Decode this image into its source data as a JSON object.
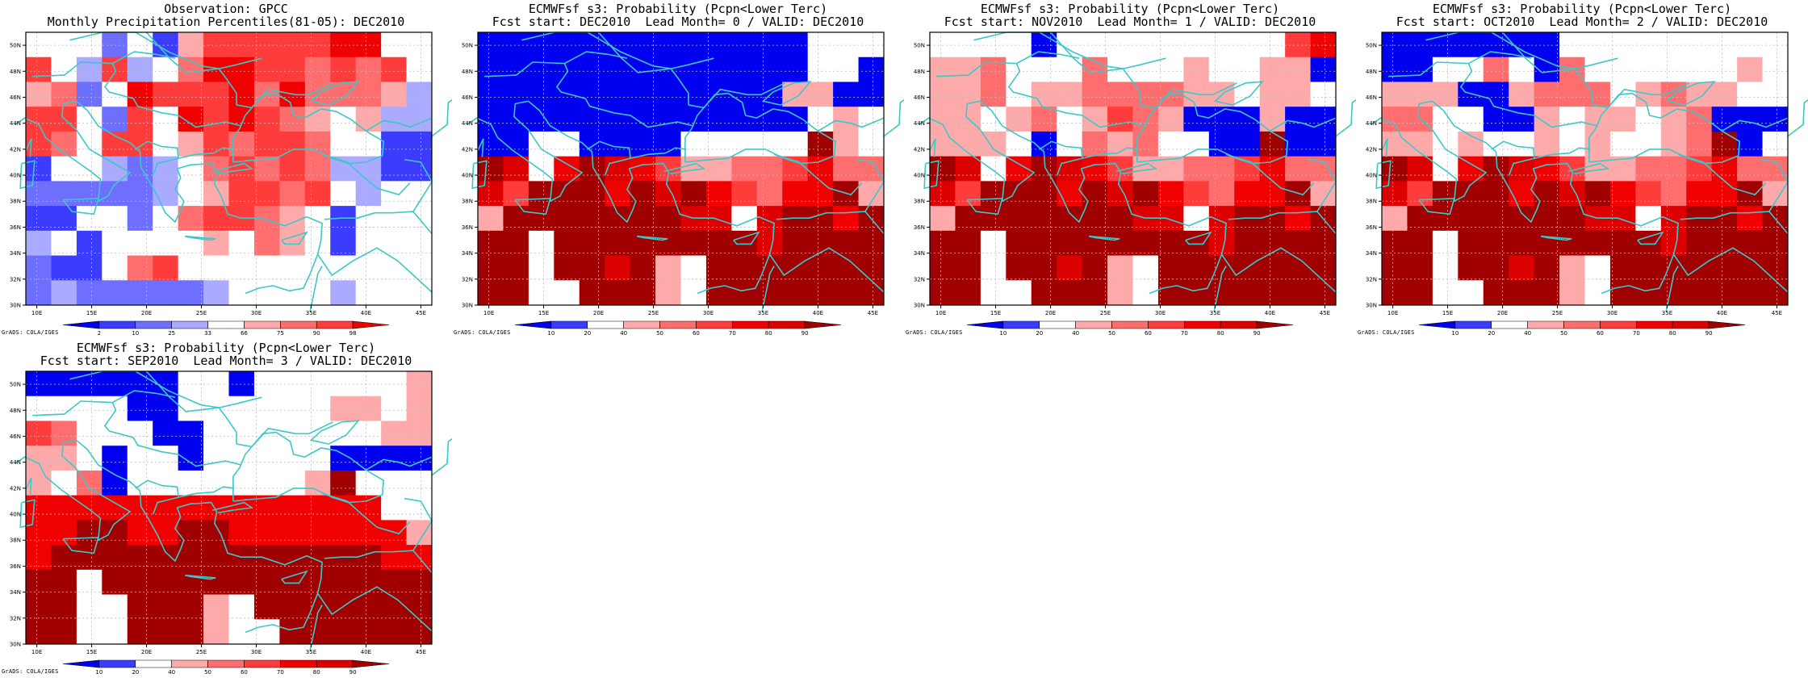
{
  "credit": "GrADS: COLA/IGES",
  "lon_ticks": [
    "10E",
    "15E",
    "20E",
    "25E",
    "30E",
    "35E",
    "40E",
    "45E"
  ],
  "lat_ticks": [
    "30N",
    "32N",
    "34N",
    "36N",
    "38N",
    "40N",
    "42N",
    "44N",
    "46N",
    "48N",
    "50N"
  ],
  "colors": {
    "coast": "#3cc8c8",
    "grid": "#bdbdbd"
  },
  "chart_data": [
    {
      "type": "heatmap",
      "title": "Observation: GPCC",
      "subtitle": "Monthly Precipitation Percentiles(81-05): DEC2010",
      "x_range": [
        9,
        46
      ],
      "y_range": [
        30,
        51
      ],
      "colorbar": {
        "labels": [
          "2",
          "10",
          "25",
          "33",
          "66",
          "75",
          "90",
          "98"
        ],
        "colors": [
          "#0000f0",
          "#3c3cff",
          "#6e6eff",
          "#aaaaff",
          "#ffffff",
          "#ffaaaa",
          "#ff6e6e",
          "#ff3c3c",
          "#f00000"
        ]
      },
      "grid_legend": "B=#0000f0 b=#3c3cff c=#6e6eff d=#aaaaff w=#ffffff e=#ffaaaa f=#ff6e6e g=#ff3c3c h=#f00000",
      "grid": [
        "wwwcwbeggggghhww",
        "gwdgdwfhhggfgfgw",
        "efcwhggghfhfffed",
        "ggwcgwhghgfewedd",
        "gfwggwegfggfwwbb",
        "bwwdcdwfgfgfddbb",
        "cccccdweggfgwdww",
        "bbwwcwfggfewbwww",
        "dwbwwwwewfewbwww",
        "cbbwfgwwwwwwwwww",
        "cdcccccdwwwwdwww"
      ]
    },
    {
      "type": "heatmap",
      "title": "ECMWFsf s3: Probability (Pcpn<Lower Terc)",
      "subtitle": "Fcst start: DEC2010  Lead Month= 0 / VALID: DEC2010",
      "x_range": [
        9,
        46
      ],
      "y_range": [
        30,
        51
      ],
      "colorbar": {
        "labels": [
          "10",
          "20",
          "40",
          "50",
          "60",
          "70",
          "80",
          "90"
        ],
        "colors": [
          "#0000f0",
          "#3c3cff",
          "#ffffff",
          "#ffaaaa",
          "#ff6e6e",
          "#ff3c3c",
          "#f00000",
          "#dc0000",
          "#a00000"
        ]
      },
      "grid_legend": "B=#0000f0 b=#3c3cff w=#ffffff e=#ffaaaa f=#ff6e6e g=#ff3c3c h=#f00000 r=#dc0000 R=#a00000",
      "grid": [
        "BBBBBBBBBBBBBwww",
        "BBBBBBBBBBBBBwwB",
        "BBBBBBBBBBBBeeBB",
        "BBBBBBBBBBBBBwew",
        "BBwwBBBBwwwwwRew",
        "RrwhRrhgeeffghff",
        "rgRRRhRrRhgfhhRe",
        "eRRRRRRRrrwrRRhR",
        "RRwRRRRRRRRrRRRR",
        "RRwRRrRewRRRRRRR",
        "RRwwRRRewRRRRRRR"
      ]
    },
    {
      "type": "heatmap",
      "title": "ECMWFsf s3: Probability (Pcpn<Lower Terc)",
      "subtitle": "Fcst start: NOV2010  Lead Month= 1 / VALID: DEC2010",
      "x_range": [
        9,
        46
      ],
      "y_range": [
        30,
        51
      ],
      "colorbar": {
        "labels": [
          "10",
          "20",
          "40",
          "50",
          "60",
          "70",
          "80",
          "90"
        ],
        "colors": [
          "#0000f0",
          "#3c3cff",
          "#ffffff",
          "#ffaaaa",
          "#ff6e6e",
          "#ff3c3c",
          "#f00000",
          "#dc0000",
          "#a00000"
        ]
      },
      "grid_legend": "B=#0000f0 b=#3c3cff w=#ffffff e=#ffaaaa f=#ff6e6e g=#ff3c3c h=#f00000 r=#dc0000 R=#a00000",
      "grid": [
        "wwwwBwwwwwwwwwgh",
        "eefwwwfwwwewweeB",
        "eefweeffffeeweew",
        "eewefwegfeBBBeBB",
        "eeewBwfefwwBBRBB",
        "RrwhRrhgeeffghff",
        "rgRRRhRrRhgfhhRe",
        "eRRRRRRRrrwrRRhR",
        "RRwRRRRRRRRrRRRR",
        "RRwRRrRewRRRRRRR",
        "RRwwRRRewRRRRRRR"
      ]
    },
    {
      "type": "heatmap",
      "title": "ECMWFsf s3: Probability (Pcpn<Lower Terc)",
      "subtitle": "Fcst start: OCT2010  Lead Month= 2 / VALID: DEC2010",
      "x_range": [
        9,
        46
      ],
      "y_range": [
        30,
        51
      ],
      "colorbar": {
        "labels": [
          "10",
          "20",
          "40",
          "50",
          "60",
          "70",
          "80",
          "90"
        ],
        "colors": [
          "#0000f0",
          "#3c3cff",
          "#ffffff",
          "#ffaaaa",
          "#ff6e6e",
          "#ff3c3c",
          "#f00000",
          "#dc0000",
          "#a00000"
        ]
      },
      "grid_legend": "B=#0000f0 b=#3c3cff w=#ffffff e=#ffaaaa f=#ff6e6e g=#ff3c3c h=#f00000 r=#dc0000 R=#a00000",
      "grid": [
        "BBBBBBBwwwwwwwww",
        "BBwwfwBfwwwwwwew",
        "eeeBBefffwefeeww",
        "ffwwBBeweewefBBB",
        "eewewwewewwefRBw",
        "RrwhRrhgeeffghff",
        "rgRRRhRrRhgfhhRe",
        "eRRRRRRRrrwrRRhR",
        "RRwRRRRRRRRrRRRR",
        "RRwRRrRewRRRRRRR",
        "RRwwRRRewRRRRRRR"
      ]
    },
    {
      "type": "heatmap",
      "title": "ECMWFsf s3: Probability (Pcpn<Lower Terc)",
      "subtitle": "Fcst start: SEP2010  Lead Month= 3 / VALID: DEC2010",
      "x_range": [
        9,
        46
      ],
      "y_range": [
        30,
        51
      ],
      "colorbar": {
        "labels": [
          "10",
          "20",
          "40",
          "50",
          "60",
          "70",
          "80",
          "90"
        ],
        "colors": [
          "#0000f0",
          "#3c3cff",
          "#ffffff",
          "#ffaaaa",
          "#ff6e6e",
          "#ff3c3c",
          "#f00000",
          "#dc0000",
          "#a00000"
        ]
      },
      "grid_legend": "B=#0000f0 b=#3c3cff w=#ffffff e=#ffaaaa f=#ff6e6e g=#ff3c3c h=#f00000 r=#dc0000 R=#a00000",
      "grid": [
        "BBBBBBwwBwwwwwwe",
        "wwwwBBwwwwwweewe",
        "gfwwwBBwwwwwwwee",
        "eewBwwBwwwwwBBBB",
        "ewfBwwwwwwweRwww",
        "hhhhhhhhhhhhhhww",
        "hhRRhhRRhhhhhhhe",
        "hRRRRRRRRRRRRRhh",
        "RRwRRRRRRRRRRRRR",
        "RRwwRRRewRRRRRRR",
        "RRwwRRRewwRRRRRR"
      ]
    }
  ]
}
